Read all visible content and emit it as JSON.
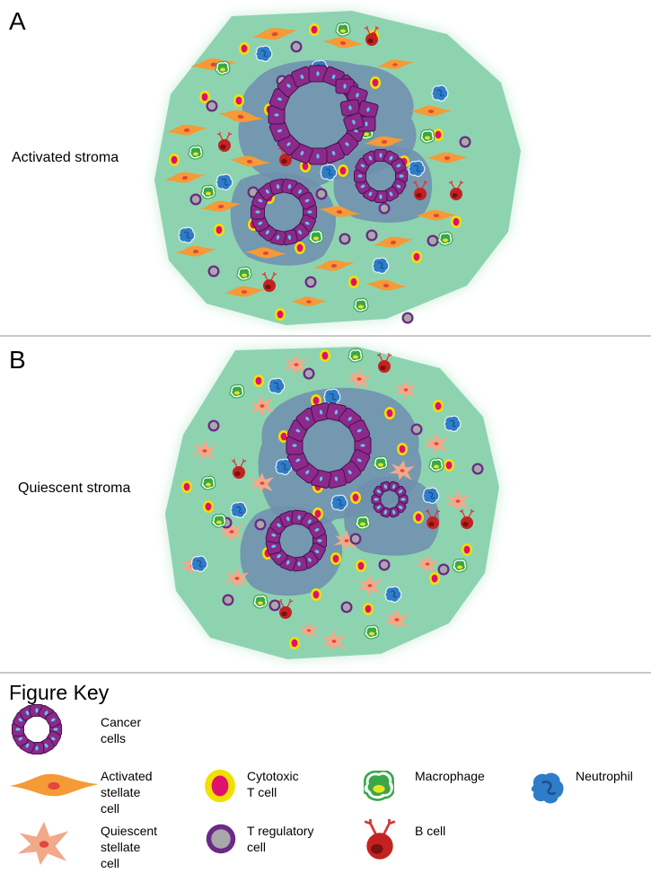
{
  "panels": [
    {
      "letter": "A",
      "label": "Activated stroma",
      "stellate": "activated"
    },
    {
      "letter": "B",
      "label": "Quiescent stroma",
      "stellate": "quiescent"
    }
  ],
  "key": {
    "title": "Figure Key",
    "items": [
      {
        "id": "cancer",
        "label": "Cancer\ncells",
        "icon": "cancer-cells-icon"
      },
      {
        "id": "activated-stellate",
        "label": "Activated\nstellate\ncell",
        "icon": "activated-stellate-cell-icon"
      },
      {
        "id": "cytotoxic",
        "label": "Cytotoxic\nT cell",
        "icon": "cytotoxic-t-cell-icon"
      },
      {
        "id": "macrophage",
        "label": "Macrophage",
        "icon": "macrophage-icon"
      },
      {
        "id": "neutrophil",
        "label": "Neutrophil",
        "icon": "neutrophil-icon"
      },
      {
        "id": "quiescent-stellate",
        "label": "Quiescent\nstellate\ncell",
        "icon": "quiescent-stellate-cell-icon"
      },
      {
        "id": "treg",
        "label": "T regulatory\ncell",
        "icon": "t-regulatory-cell-icon"
      },
      {
        "id": "bcell",
        "label": "B cell",
        "icon": "b-cell-icon"
      }
    ]
  },
  "colors": {
    "stroma": "#8ed3b0",
    "stroma_glow": "#c9ecd9",
    "tumor_region": "#6f8fae",
    "cancer_cell": "#8b2a8b",
    "cancer_cell_edge": "#4b0f4d",
    "cancer_nucleus": "#5ec8e8",
    "activated_stellate": "#f59a36",
    "quiescent_stellate": "#f2a98a",
    "stellate_nucleus": "#e2463c",
    "cytotoxic_outer": "#f2e000",
    "cytotoxic_inner": "#e0106e",
    "treg_outer": "#6a2a86",
    "treg_inner": "#a8a8a8",
    "macrophage": "#3aa64a",
    "macrophage_inner": "#e6e41a",
    "neutrophil": "#2f7cc9",
    "bcell": "#c42222"
  }
}
